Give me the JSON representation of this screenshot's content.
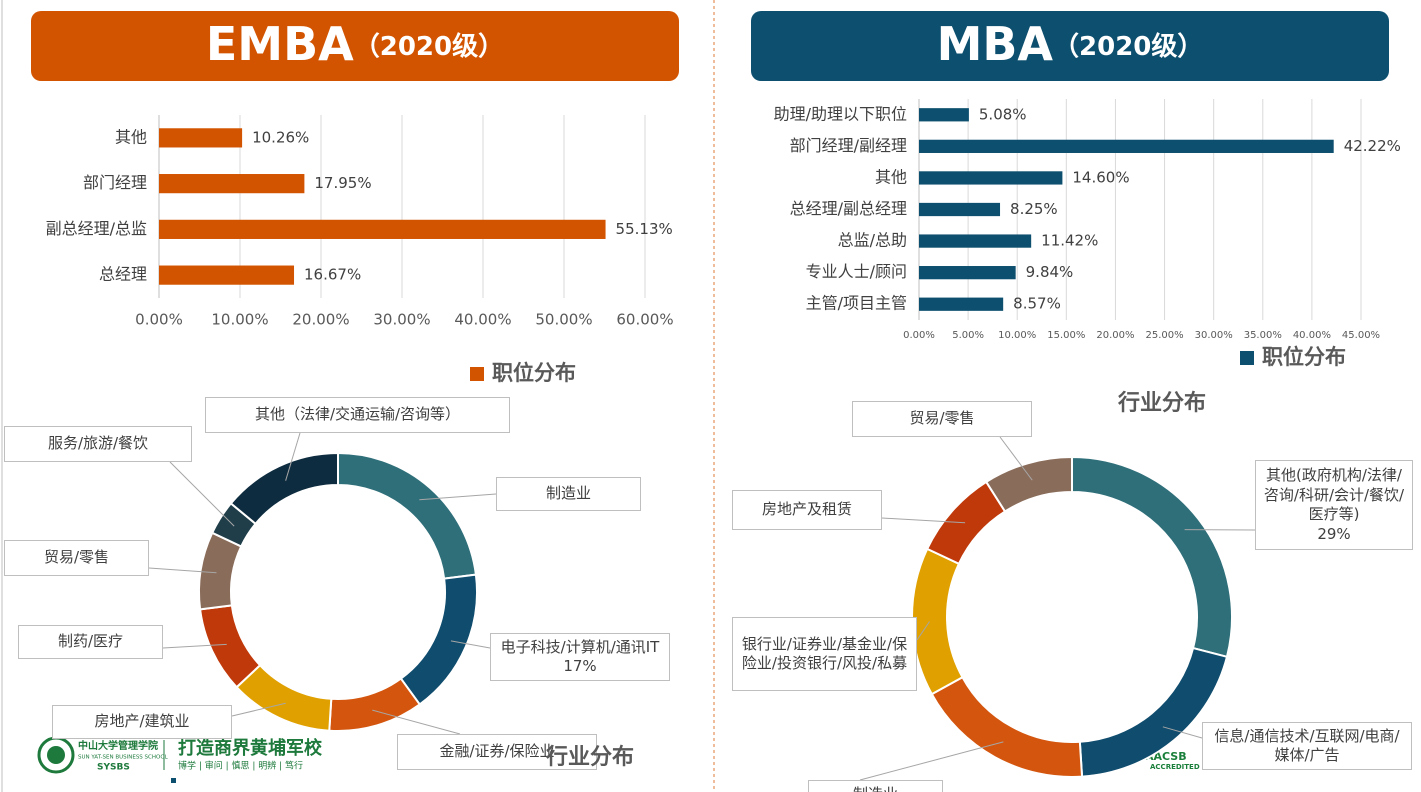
{
  "panels": [
    {
      "title": "EMBA",
      "subtitle": "（2020级）"
    },
    {
      "title": "MBA",
      "subtitle": "（2020级）"
    }
  ],
  "footer": {
    "school_cn": "中山大学管理学院",
    "school_en": "SUN YAT-SEN BUSINESS SCHOOL",
    "abbr": "SYSBS",
    "slogan": "打造商界黄埔军校",
    "motto": "博学 | 审问 | 慎思 | 明辨 | 笃行",
    "badge": "AACSB",
    "badge_sub": "ACCREDITED"
  },
  "chart_data": [
    {
      "type": "hbar",
      "categories": [
        "其他",
        "部门经理",
        "副总经理/总监",
        "总经理"
      ],
      "series": [
        {
          "name": "职位分布",
          "color": "#d35400",
          "values": [
            10.26,
            17.95,
            55.13,
            16.67
          ],
          "value_labels": [
            "10.26%",
            "17.95%",
            "55.13%",
            "16.67%"
          ]
        }
      ],
      "xlim": [
        0,
        60
      ],
      "xticks": [
        {
          "value": 0,
          "label": "0.00%"
        },
        {
          "value": 10,
          "label": "10.00%"
        },
        {
          "value": 20,
          "label": "20.00%"
        },
        {
          "value": 30,
          "label": "30.00%"
        },
        {
          "value": 40,
          "label": "40.00%"
        },
        {
          "value": 50,
          "label": "50.00%"
        },
        {
          "value": 60,
          "label": "60.00%"
        }
      ],
      "grid": true
    },
    {
      "type": "hbar",
      "categories": [
        "助理/助理以下职位",
        "部门经理/副经理",
        "其他",
        "总经理/副总经理",
        "总监/总助",
        "专业人士/顾问",
        "主管/项目主管"
      ],
      "series": [
        {
          "name": "职位分布",
          "color": "#0d4f6e",
          "values": [
            5.08,
            42.22,
            14.6,
            8.25,
            11.42,
            9.84,
            8.57
          ],
          "value_labels": [
            "5.08%",
            "42.22%",
            "14.60%",
            "8.25%",
            "11.42%",
            "9.84%",
            "8.57%"
          ]
        }
      ],
      "xlim": [
        0,
        45
      ],
      "xticks": [
        {
          "value": 0,
          "label": "0.00%"
        },
        {
          "value": 5,
          "label": "5.00%"
        },
        {
          "value": 10,
          "label": "10.00%"
        },
        {
          "value": 15,
          "label": "15.00%"
        },
        {
          "value": 20,
          "label": "20.00%"
        },
        {
          "value": 25,
          "label": "25.00%"
        },
        {
          "value": 30,
          "label": "30.00%"
        },
        {
          "value": 35,
          "label": "35.00%"
        },
        {
          "value": 40,
          "label": "40.00%"
        },
        {
          "value": 45,
          "label": "45.00%"
        }
      ],
      "grid": true
    },
    {
      "type": "donut",
      "title": "行业分布",
      "categories": [
        "制造业",
        "电子科技/计算机/通讯IT",
        "金融/证券/保险业",
        "房地产/建筑业",
        "制药/医疗",
        "贸易/零售",
        "服务/旅游/餐饮",
        "其他（法律/交通运输/咨询等）"
      ],
      "values": [
        23,
        17,
        11,
        12,
        10,
        9,
        4,
        14
      ],
      "value_labels": [
        null,
        "17%",
        null,
        null,
        null,
        null,
        null,
        null
      ],
      "colors": [
        "#2f6f7a",
        "#0f4c6d",
        "#d4560e",
        "#e0a100",
        "#c0390b",
        "#8a6c5a",
        "#1f3e4a",
        "#0e2c3f"
      ]
    },
    {
      "type": "donut",
      "title": "行业分布",
      "categories": [
        "其他(政府机构/法律/咨询/科研/会计/餐饮/医疗等)",
        "信息/通信技术/互联网/电商/媒体/广告",
        "制造业",
        "银行业/证券业/基金业/保险业/投资银行/风投/私募",
        "房地产及租赁",
        "贸易/零售"
      ],
      "values": [
        29,
        20,
        18,
        15,
        9,
        9
      ],
      "value_labels": [
        "29%",
        null,
        null,
        null,
        null,
        null
      ],
      "colors": [
        "#2f6f7a",
        "#0f4c6d",
        "#d4560e",
        "#e0a100",
        "#c0390b",
        "#8a6c5a"
      ]
    }
  ]
}
